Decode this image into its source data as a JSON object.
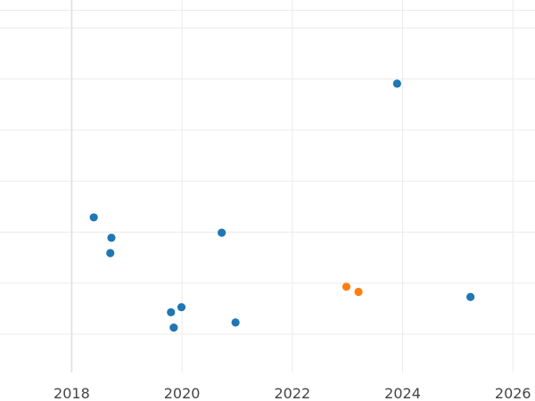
{
  "chart_data": {
    "type": "scatter",
    "title": "",
    "xlabel": "",
    "ylabel": "",
    "xlim": [
      2016.7,
      2026.4
    ],
    "ylim": [
      0,
      7.3
    ],
    "x_ticks": [
      2018,
      2020,
      2022,
      2024,
      2026
    ],
    "x_tick_labels": [
      "2018",
      "2020",
      "2022",
      "2024",
      "2026"
    ],
    "y_gridlines": [
      0.75,
      1.75,
      2.75,
      3.75,
      4.75,
      5.75,
      6.75,
      7.1
    ],
    "grid": true,
    "legend": "none",
    "series": [
      {
        "color": "#1f77b4",
        "points": [
          {
            "x": 2018.4,
            "y": 3.04
          },
          {
            "x": 2018.72,
            "y": 2.64
          },
          {
            "x": 2018.7,
            "y": 2.34
          },
          {
            "x": 2019.8,
            "y": 1.18
          },
          {
            "x": 2019.99,
            "y": 1.28
          },
          {
            "x": 2019.85,
            "y": 0.88
          },
          {
            "x": 2020.72,
            "y": 2.74
          },
          {
            "x": 2020.97,
            "y": 0.98
          },
          {
            "x": 2023.9,
            "y": 5.66
          },
          {
            "x": 2025.23,
            "y": 1.48
          }
        ]
      },
      {
        "color": "#ff7f0e",
        "points": [
          {
            "x": 2022.98,
            "y": 1.68
          },
          {
            "x": 2023.2,
            "y": 1.58
          }
        ]
      }
    ]
  }
}
